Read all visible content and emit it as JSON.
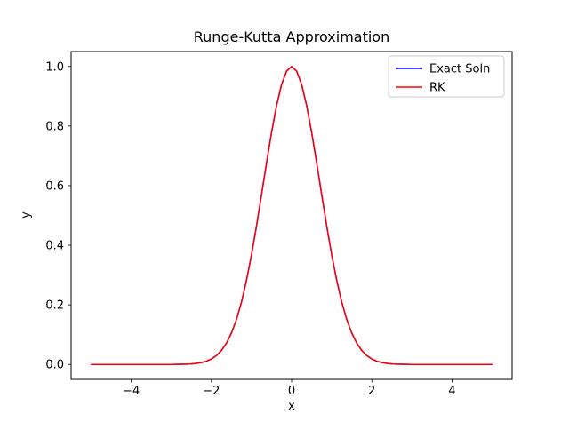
{
  "figure": {
    "background": "#ffffff"
  },
  "chart_data": {
    "type": "line",
    "title": "Runge-Kutta Approximation",
    "xlabel": "x",
    "ylabel": "y",
    "xlim": [
      -5.5,
      5.5
    ],
    "ylim": [
      -0.05,
      1.05
    ],
    "xticks": [
      -4,
      -2,
      0,
      2,
      4
    ],
    "yticks": [
      0.0,
      0.2,
      0.4,
      0.6,
      0.8,
      1.0
    ],
    "grid": false,
    "legend_position": "upper right",
    "x": [
      -5,
      -4.5,
      -4,
      -3.5,
      -3,
      -2.875,
      -2.75,
      -2.625,
      -2.5,
      -2.375,
      -2.25,
      -2.125,
      -2,
      -1.875,
      -1.75,
      -1.625,
      -1.5,
      -1.375,
      -1.25,
      -1.125,
      -1,
      -0.875,
      -0.75,
      -0.625,
      -0.5,
      -0.375,
      -0.25,
      -0.125,
      0,
      0.125,
      0.25,
      0.375,
      0.5,
      0.625,
      0.75,
      0.875,
      1,
      1.125,
      1.25,
      1.375,
      1.5,
      1.625,
      1.75,
      1.875,
      2,
      2.125,
      2.25,
      2.375,
      2.5,
      2.625,
      2.75,
      2.875,
      3,
      3.5,
      4,
      4.5,
      5
    ],
    "series": [
      {
        "name": "Exact Soln",
        "color": "#0000ff",
        "values": [
          0,
          0,
          0,
          0,
          0.00012,
          0.00026,
          0.00052,
          0.00102,
          0.00193,
          0.00355,
          0.00633,
          0.01094,
          0.01832,
          0.02973,
          0.04677,
          0.07132,
          0.1054,
          0.15099,
          0.20961,
          0.28206,
          0.36788,
          0.46504,
          0.56978,
          0.67663,
          0.7788,
          0.86882,
          0.93941,
          0.9845,
          1,
          0.9845,
          0.93941,
          0.86882,
          0.7788,
          0.67663,
          0.56978,
          0.46504,
          0.36788,
          0.28206,
          0.20961,
          0.15099,
          0.1054,
          0.07132,
          0.04677,
          0.02973,
          0.01832,
          0.01094,
          0.00633,
          0.00355,
          0.00193,
          0.00102,
          0.00052,
          0.00026,
          0.00012,
          0,
          0,
          0,
          0
        ]
      },
      {
        "name": "RK",
        "color": "#ff0000",
        "values": [
          0,
          0,
          0,
          0,
          0.00012,
          0.00026,
          0.00052,
          0.00102,
          0.00193,
          0.00355,
          0.00633,
          0.01094,
          0.01832,
          0.02973,
          0.04677,
          0.07132,
          0.1054,
          0.15099,
          0.20961,
          0.28206,
          0.36788,
          0.46504,
          0.56978,
          0.67663,
          0.7788,
          0.86882,
          0.93941,
          0.9845,
          1,
          0.9845,
          0.93941,
          0.86882,
          0.7788,
          0.67663,
          0.56978,
          0.46504,
          0.36788,
          0.28206,
          0.20961,
          0.15099,
          0.1054,
          0.07132,
          0.04677,
          0.02973,
          0.01832,
          0.01094,
          0.00633,
          0.00355,
          0.00193,
          0.00102,
          0.00052,
          0.00026,
          0.00012,
          0,
          0,
          0,
          0
        ]
      }
    ]
  }
}
